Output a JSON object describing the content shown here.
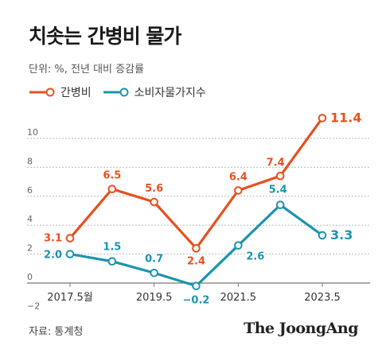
{
  "title": "치솟는 간병비 물가",
  "unit": "단위: %, 전년 대비 증감률",
  "source": "자료: 통계청",
  "logo": "The JoongAng",
  "colors": {
    "orange": "#e8501f",
    "teal": "#1b94ae",
    "grid": "#bbbbbb",
    "axis": "#777777"
  },
  "chart_data": {
    "type": "line",
    "x": [
      0,
      1,
      2,
      3,
      4,
      5,
      6
    ],
    "xticks": [
      {
        "x": 0,
        "label": "2017.5월"
      },
      {
        "x": 2,
        "label": "2019.5"
      },
      {
        "x": 4,
        "label": "2021.5"
      },
      {
        "x": 6,
        "label": "2023.5"
      }
    ],
    "yticks": [
      -2,
      0,
      2,
      4,
      6,
      8,
      10
    ],
    "ylim": [
      -2,
      12
    ],
    "grid": true,
    "legend": "top-left",
    "series": [
      {
        "name": "간병비",
        "color": "#e8501f",
        "values": [
          3.1,
          6.5,
          5.6,
          2.4,
          6.4,
          7.4,
          11.4
        ],
        "labels": [
          "3.1",
          "6.5",
          "5.6",
          "2.4",
          "6.4",
          "7.4",
          "11.4"
        ]
      },
      {
        "name": "소비자물가지수",
        "color": "#1b94ae",
        "values": [
          2.0,
          1.5,
          0.7,
          -0.2,
          2.6,
          5.4,
          3.3
        ],
        "labels": [
          "2.0",
          "1.5",
          "0.7",
          "-0.2",
          "2.6",
          "5.4",
          "3.3"
        ]
      }
    ]
  }
}
